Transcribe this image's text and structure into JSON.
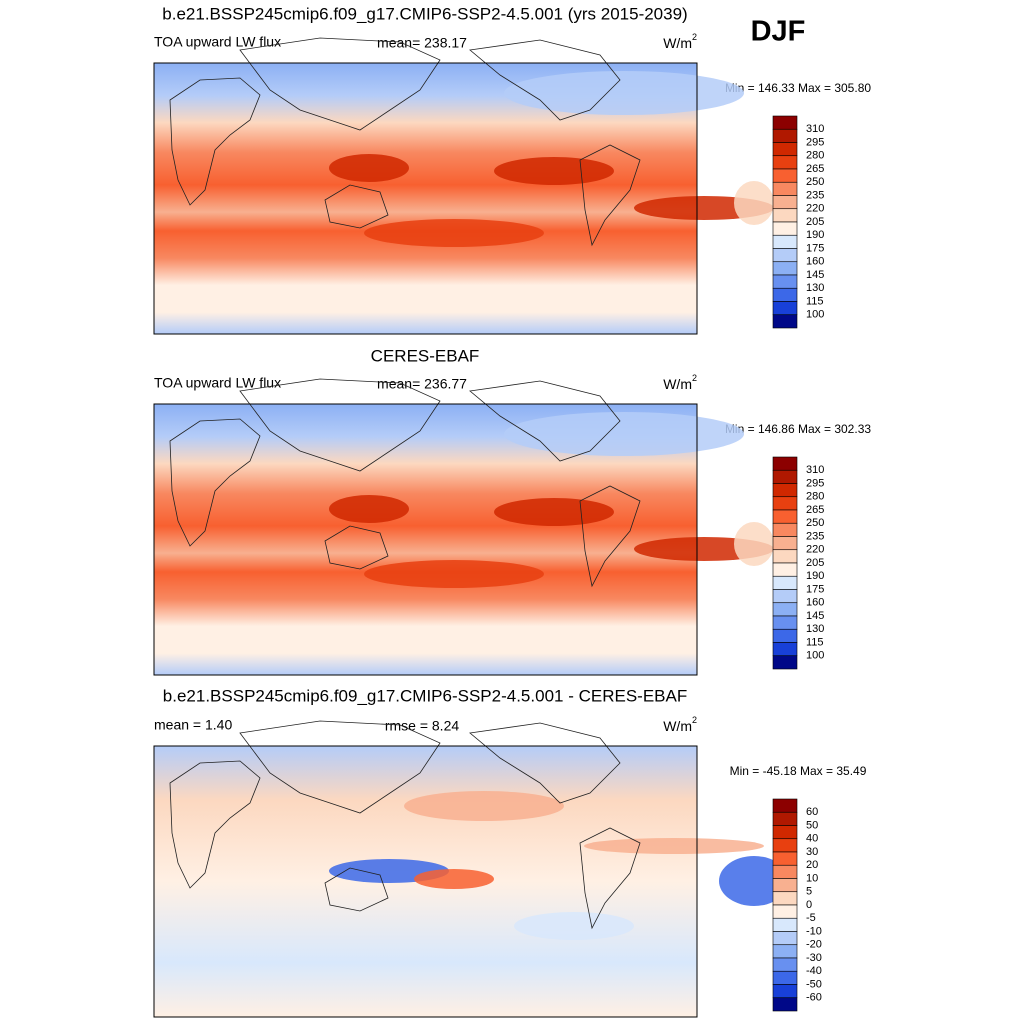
{
  "season": "DJF",
  "panels": [
    {
      "title": "b.e21.BSSP245cmip6.f09_g17.CMIP6-SSP2-4.5.001 (yrs 2015-2039)",
      "left_label": "TOA upward LW flux",
      "center_label": "mean= 238.17",
      "units": {
        "base": "W/m",
        "exponent": "2"
      },
      "minmax": "Min = 146.33 Max = 305.80",
      "style": "field",
      "levels": [
        310,
        295,
        280,
        265,
        250,
        235,
        220,
        205,
        190,
        175,
        160,
        145,
        130,
        115,
        100
      ]
    },
    {
      "title": "CERES-EBAF",
      "left_label": "TOA upward LW flux",
      "center_label": "mean= 236.77",
      "units": {
        "base": "W/m",
        "exponent": "2"
      },
      "minmax": "Min = 146.86 Max = 302.33",
      "style": "field",
      "levels": [
        310,
        295,
        280,
        265,
        250,
        235,
        220,
        205,
        190,
        175,
        160,
        145,
        130,
        115,
        100
      ]
    },
    {
      "title": "b.e21.BSSP245cmip6.f09_g17.CMIP6-SSP2-4.5.001 - CERES-EBAF",
      "left_label": "mean =   1.40",
      "center_label": "rmse =   8.24",
      "units": {
        "base": "W/m",
        "exponent": "2"
      },
      "minmax": "Min = -45.18 Max =  35.49",
      "style": "difference",
      "levels": [
        60,
        50,
        40,
        30,
        20,
        10,
        5,
        0,
        -5,
        -10,
        -20,
        -30,
        -40,
        -50,
        -60
      ]
    }
  ],
  "colorbar_colors": [
    "#8c0000",
    "#b01800",
    "#d02800",
    "#e84010",
    "#f86030",
    "#f88860",
    "#f8b090",
    "#fcd8c0",
    "#fff0e4",
    "#d8e8fc",
    "#b4ccf8",
    "#8cb0f4",
    "#6890f0",
    "#3c68e8",
    "#1840d8",
    "#000888"
  ]
}
